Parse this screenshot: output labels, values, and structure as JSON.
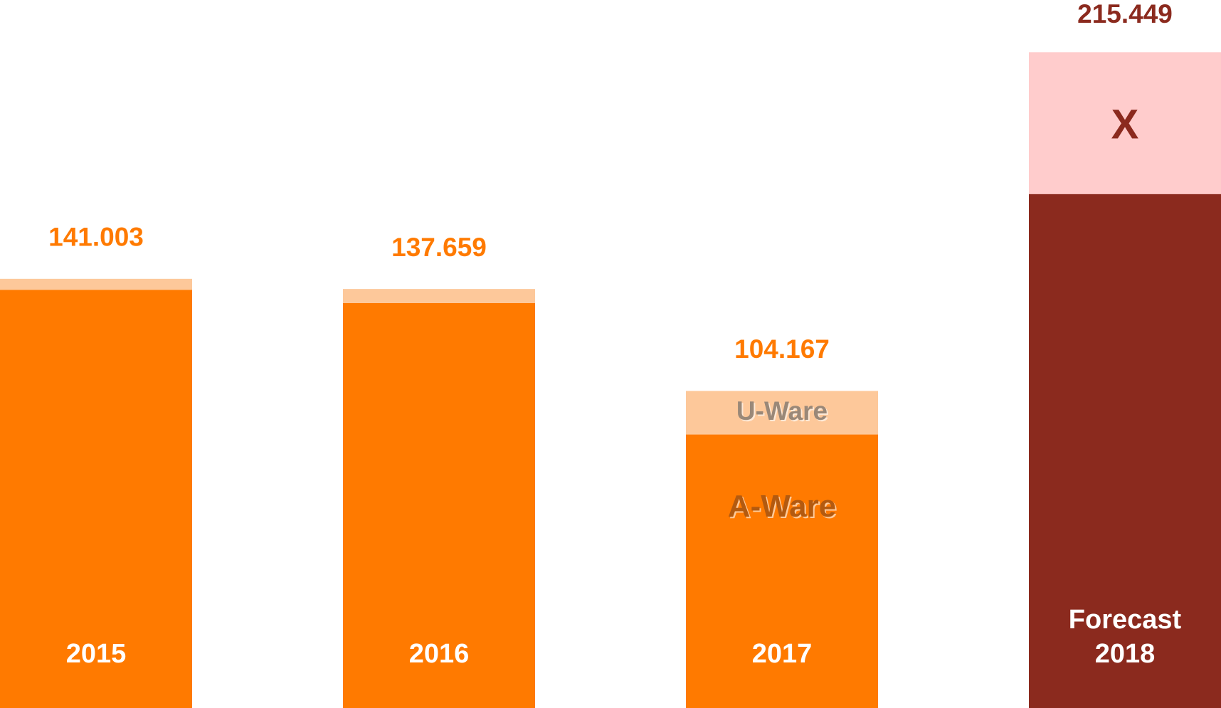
{
  "chart_data": {
    "type": "stacked_bar",
    "categories": [
      "2015",
      "2016",
      "2017",
      "Forecast 2018"
    ],
    "series": [
      {
        "name": "A-Ware",
        "colors": [
          "#ff7a00",
          "#ff7a00",
          "#ff7a00",
          "#8b2a1e"
        ],
        "values": [
          137403,
          133059,
          89867,
          168849
        ]
      },
      {
        "name": "U-Ware",
        "colors": [
          "#fdc89a",
          "#fdc89a",
          "#fdc89a",
          "#ffcccc"
        ],
        "values": [
          3600,
          4600,
          14300,
          46600
        ]
      }
    ],
    "totals": {
      "values": [
        141003,
        137659,
        104167,
        215449
      ],
      "value_labels": [
        "141.003",
        "137.659",
        "104.167",
        "215.449"
      ],
      "colors": [
        "#ff7a00",
        "#ff7a00",
        "#ff7a00",
        "#8b2a1e"
      ]
    },
    "annotations": [
      "X"
    ],
    "ylim": [
      0,
      232600
    ]
  }
}
